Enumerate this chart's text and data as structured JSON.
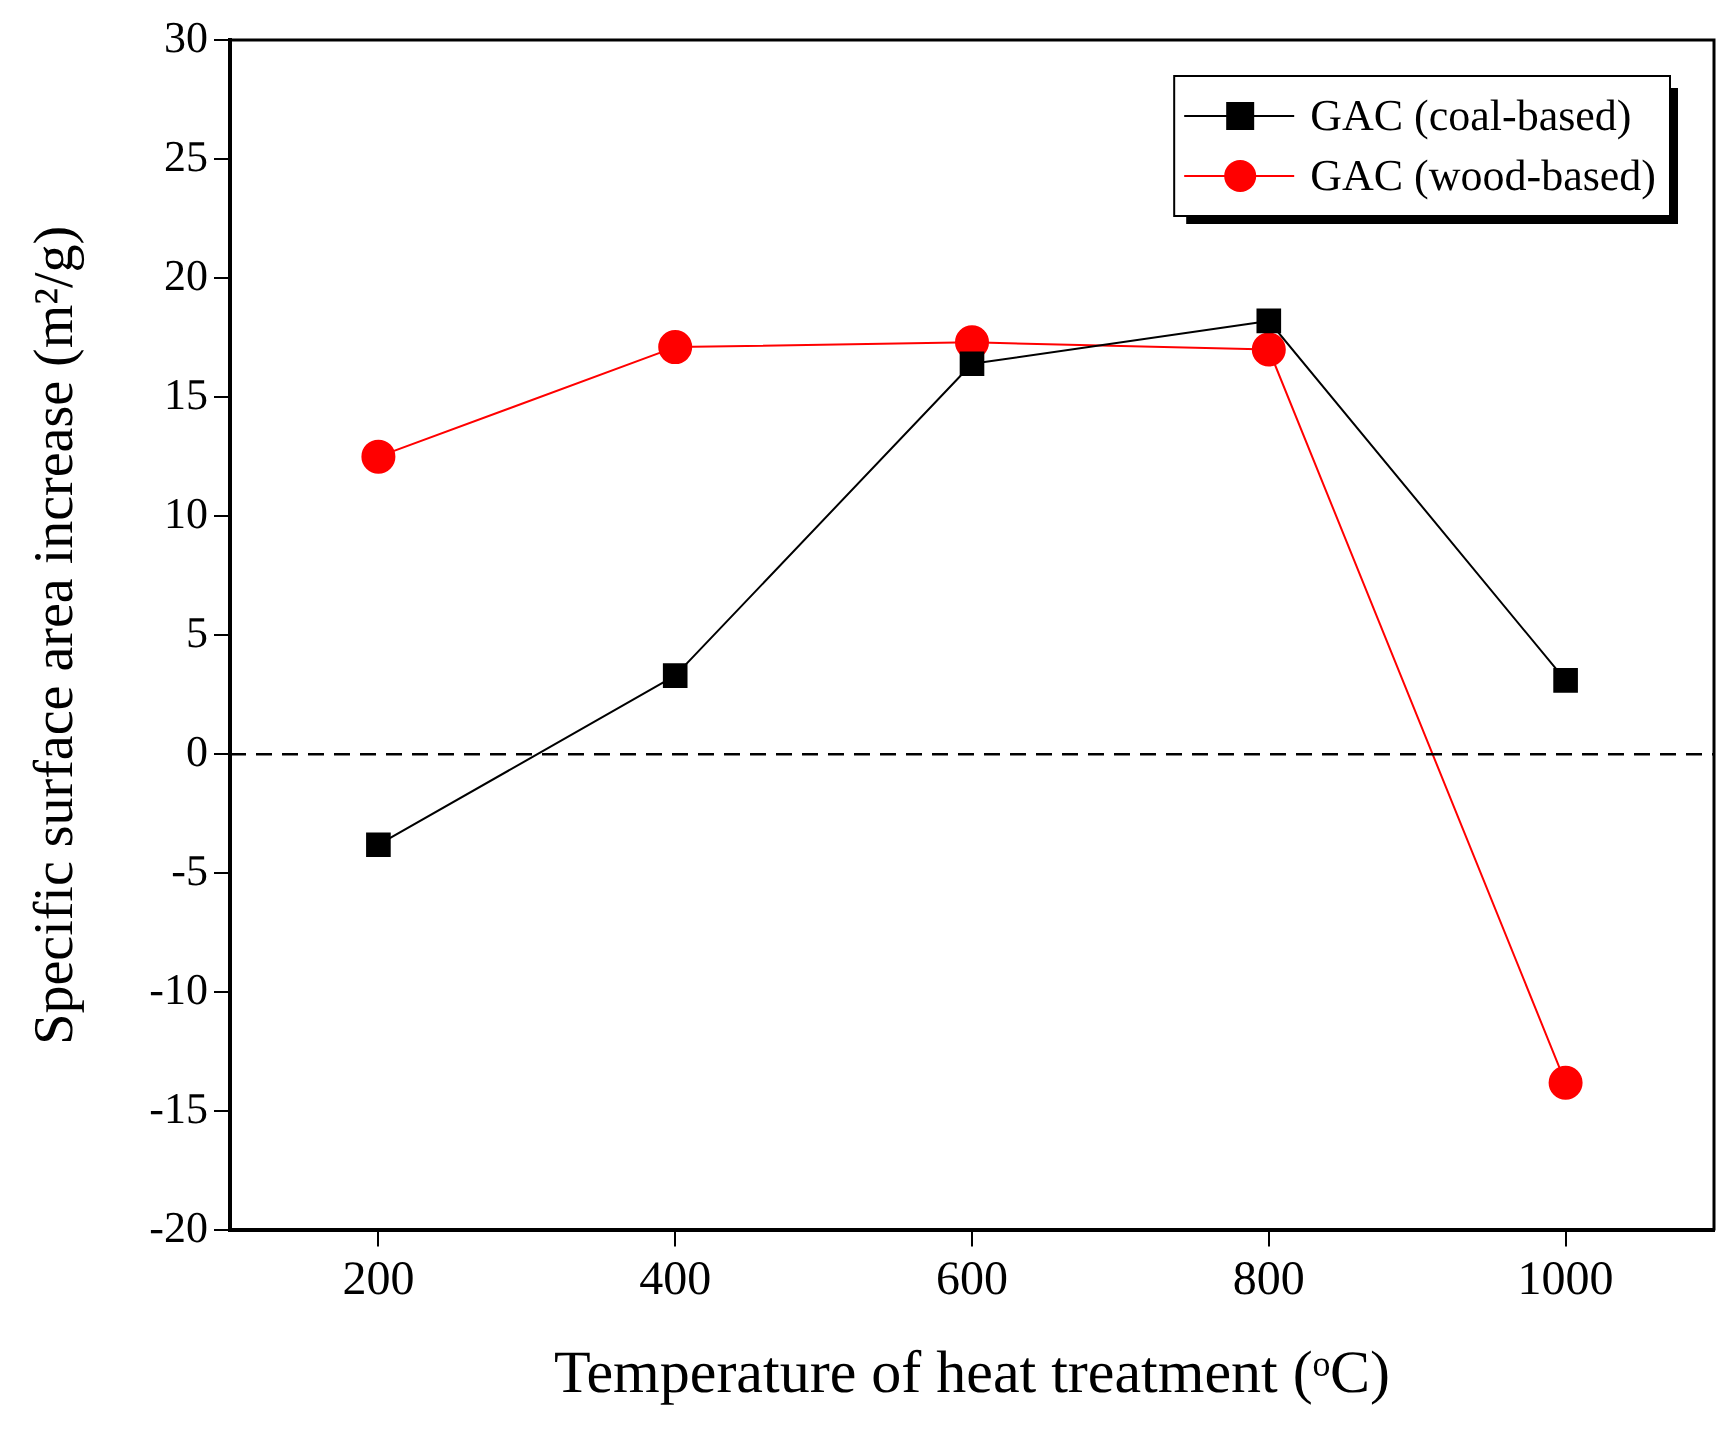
{
  "chart_data": {
    "type": "line",
    "xlabel": "Temperature of heat treatment (ᵒC)",
    "ylabel": "Specific surface area increase (m²/g)",
    "x": [
      200,
      400,
      600,
      800,
      1000
    ],
    "series": [
      {
        "name": "GAC (coal-based)",
        "color": "#000000",
        "marker": "square",
        "values": [
          -3.8,
          3.3,
          16.4,
          18.2,
          3.1
        ]
      },
      {
        "name": "GAC (wood-based)",
        "color": "#ff0000",
        "marker": "circle",
        "values": [
          12.5,
          17.1,
          17.3,
          17.0,
          -13.8
        ]
      }
    ],
    "xlim": [
      100,
      1100
    ],
    "xticks": [
      200,
      400,
      600,
      800,
      1000
    ],
    "ylim": [
      -20,
      30
    ],
    "yticks": [
      -20,
      -15,
      -10,
      -5,
      0,
      5,
      10,
      15,
      20,
      25,
      30
    ],
    "ref_lines": [
      {
        "axis": "y",
        "value": 0,
        "line_style": "dashed",
        "color": "#000000"
      }
    ],
    "legend": "top right",
    "grid": false
  }
}
